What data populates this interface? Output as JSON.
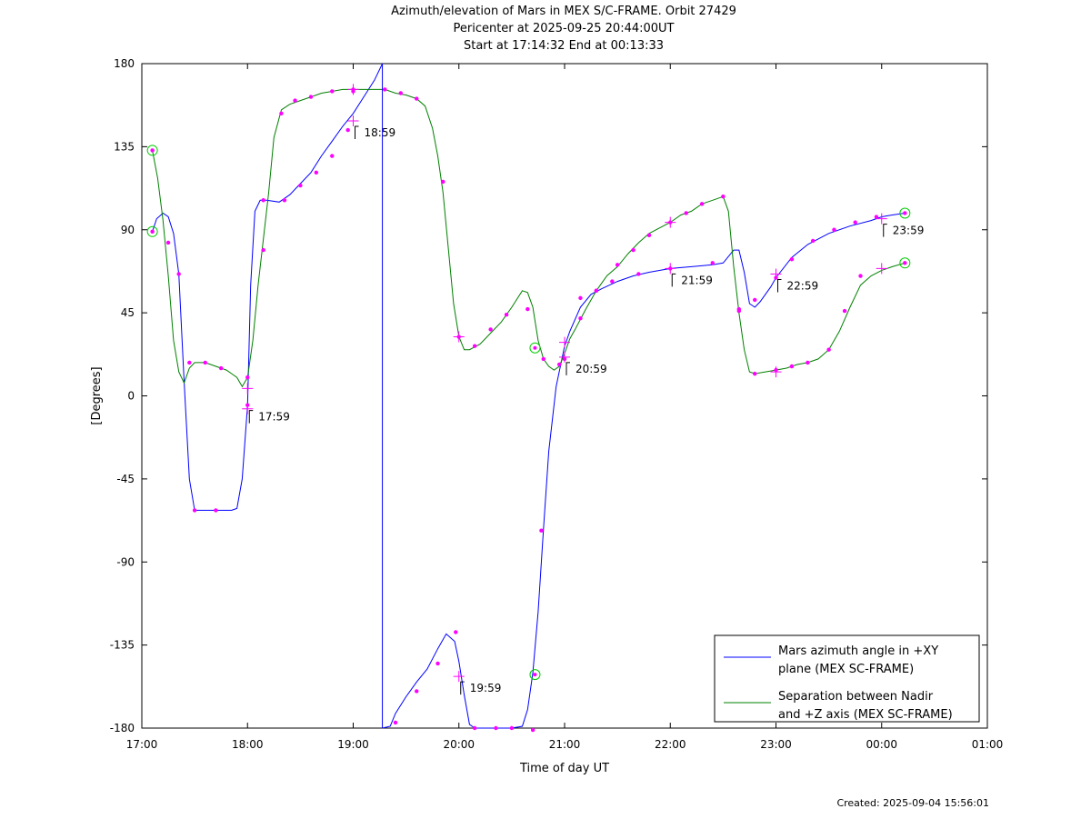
{
  "chart_data": {
    "type": "line",
    "title_lines": [
      "Azimuth/elevation of Mars in MEX S/C-FRAME.  Orbit 27429",
      "Pericenter at 2025-09-25 20:44:00UT",
      "Start at 17:14:32 End at 00:13:33"
    ],
    "xlabel": "Time of day UT",
    "ylabel": "[Degrees]",
    "x_unit": "hours since 17:00 UT",
    "xlim": [
      0,
      8
    ],
    "ylim": [
      -180,
      180
    ],
    "xticks": [
      {
        "x": 0,
        "label": "17:00"
      },
      {
        "x": 1,
        "label": "18:00"
      },
      {
        "x": 2,
        "label": "19:00"
      },
      {
        "x": 3,
        "label": "20:00"
      },
      {
        "x": 4,
        "label": "21:00"
      },
      {
        "x": 5,
        "label": "22:00"
      },
      {
        "x": 6,
        "label": "23:00"
      },
      {
        "x": 7,
        "label": "00:00"
      },
      {
        "x": 8,
        "label": "01:00"
      }
    ],
    "yticks": [
      {
        "y": 180,
        "label": "180"
      },
      {
        "y": 135,
        "label": "135"
      },
      {
        "y": 90,
        "label": "90"
      },
      {
        "y": 45,
        "label": "45"
      },
      {
        "y": 0,
        "label": "0"
      },
      {
        "y": -45,
        "label": "-45"
      },
      {
        "y": -90,
        "label": "-90"
      },
      {
        "y": -135,
        "label": "-135"
      },
      {
        "y": -180,
        "label": "-180"
      }
    ],
    "series": [
      {
        "name_lines": [
          "Mars azimuth angle in +XY",
          "plane (MEX SC-FRAME)"
        ],
        "color": "#0000ff",
        "points": [
          [
            0.1,
            89
          ],
          [
            0.14,
            96
          ],
          [
            0.2,
            99
          ],
          [
            0.25,
            97
          ],
          [
            0.3,
            88
          ],
          [
            0.35,
            66
          ],
          [
            0.4,
            8
          ],
          [
            0.45,
            -45
          ],
          [
            0.5,
            -62
          ],
          [
            0.6,
            -62
          ],
          [
            0.7,
            -62
          ],
          [
            0.8,
            -62
          ],
          [
            0.85,
            -62
          ],
          [
            0.9,
            -61
          ],
          [
            0.95,
            -45
          ],
          [
            1.0,
            -5
          ],
          [
            1.03,
            60
          ],
          [
            1.07,
            100
          ],
          [
            1.12,
            106
          ],
          [
            1.18,
            106
          ],
          [
            1.3,
            105
          ],
          [
            1.4,
            109
          ],
          [
            1.5,
            115
          ],
          [
            1.6,
            121
          ],
          [
            1.7,
            130
          ],
          [
            1.8,
            138
          ],
          [
            1.9,
            146
          ],
          [
            2.0,
            153
          ],
          [
            2.1,
            162
          ],
          [
            2.2,
            171
          ],
          [
            2.276,
            180
          ],
          null,
          [
            2.276,
            -180
          ],
          [
            2.35,
            -179
          ],
          [
            2.4,
            -172
          ],
          [
            2.5,
            -163
          ],
          [
            2.6,
            -155
          ],
          [
            2.7,
            -148
          ],
          [
            2.8,
            -137
          ],
          [
            2.88,
            -129
          ],
          [
            2.96,
            -133
          ],
          [
            3.0,
            -144
          ],
          [
            3.05,
            -162
          ],
          [
            3.1,
            -178
          ],
          [
            3.15,
            -180
          ],
          [
            3.3,
            -180
          ],
          [
            3.4,
            -180
          ],
          [
            3.5,
            -180
          ],
          [
            3.6,
            -179
          ],
          [
            3.65,
            -170
          ],
          [
            3.7,
            -150
          ],
          [
            3.75,
            -117
          ],
          [
            3.8,
            -72
          ],
          [
            3.85,
            -30
          ],
          [
            3.92,
            5
          ],
          [
            4.0,
            27
          ],
          [
            4.05,
            35
          ],
          [
            4.15,
            48
          ],
          [
            4.25,
            55
          ],
          [
            4.35,
            58
          ],
          [
            4.5,
            62
          ],
          [
            4.65,
            65
          ],
          [
            4.8,
            67
          ],
          [
            5.0,
            69
          ],
          [
            5.2,
            70
          ],
          [
            5.4,
            71
          ],
          [
            5.5,
            72
          ],
          [
            5.6,
            79
          ],
          [
            5.65,
            79
          ],
          [
            5.7,
            67
          ],
          [
            5.75,
            50
          ],
          [
            5.8,
            48
          ],
          [
            5.85,
            51
          ],
          [
            5.95,
            59
          ],
          [
            6.0,
            64
          ],
          [
            6.15,
            75
          ],
          [
            6.3,
            82
          ],
          [
            6.5,
            88
          ],
          [
            6.7,
            92
          ],
          [
            6.9,
            95
          ],
          [
            7.0,
            97
          ],
          [
            7.1,
            98
          ],
          [
            7.22,
            99
          ]
        ],
        "dots": [
          [
            0.1,
            89
          ],
          [
            0.25,
            83
          ],
          [
            0.35,
            66
          ],
          [
            0.5,
            -62
          ],
          [
            0.7,
            -62
          ],
          [
            1.0,
            -5
          ],
          [
            1.15,
            106
          ],
          [
            1.35,
            106
          ],
          [
            1.5,
            114
          ],
          [
            1.65,
            121
          ],
          [
            1.8,
            130
          ],
          [
            1.95,
            144
          ],
          [
            2.0,
            165
          ],
          [
            2.4,
            -177
          ],
          [
            2.6,
            -160
          ],
          [
            2.8,
            -145
          ],
          [
            2.97,
            -128
          ],
          [
            3.15,
            -180
          ],
          [
            3.35,
            -180
          ],
          [
            3.5,
            -180
          ],
          [
            3.7,
            -181
          ],
          [
            3.78,
            -73
          ],
          [
            4.0,
            20
          ],
          [
            4.15,
            53
          ],
          [
            4.3,
            57
          ],
          [
            4.45,
            62
          ],
          [
            4.7,
            66
          ],
          [
            5.0,
            69
          ],
          [
            5.4,
            72
          ],
          [
            5.65,
            47
          ],
          [
            5.8,
            52
          ],
          [
            6.0,
            64
          ],
          [
            6.15,
            74
          ],
          [
            6.35,
            84
          ],
          [
            6.55,
            90
          ],
          [
            6.75,
            94
          ],
          [
            6.95,
            97
          ],
          [
            7.22,
            99
          ]
        ],
        "crosses": [
          [
            1.0,
            -7
          ],
          [
            2.0,
            149
          ],
          [
            3.0,
            -152
          ],
          [
            4.0,
            21
          ],
          [
            5.0,
            69
          ],
          [
            6.0,
            66
          ],
          [
            7.0,
            96
          ]
        ],
        "circles": [
          [
            0.1,
            89
          ],
          [
            3.72,
            -151
          ],
          [
            7.22,
            99
          ]
        ]
      },
      {
        "name_lines": [
          "Separation between Nadir",
          "and +Z axis (MEX SC-FRAME)"
        ],
        "color": "#008000",
        "points": [
          [
            0.1,
            133
          ],
          [
            0.15,
            118
          ],
          [
            0.2,
            95
          ],
          [
            0.25,
            65
          ],
          [
            0.3,
            30
          ],
          [
            0.35,
            13
          ],
          [
            0.4,
            7
          ],
          [
            0.45,
            15
          ],
          [
            0.5,
            18
          ],
          [
            0.6,
            18
          ],
          [
            0.7,
            16
          ],
          [
            0.8,
            14
          ],
          [
            0.85,
            12
          ],
          [
            0.9,
            10
          ],
          [
            0.95,
            5
          ],
          [
            1.0,
            10
          ],
          [
            1.05,
            30
          ],
          [
            1.1,
            60
          ],
          [
            1.15,
            85
          ],
          [
            1.2,
            110
          ],
          [
            1.25,
            140
          ],
          [
            1.32,
            155
          ],
          [
            1.4,
            158
          ],
          [
            1.5,
            160
          ],
          [
            1.6,
            162
          ],
          [
            1.7,
            164
          ],
          [
            1.8,
            165
          ],
          [
            1.9,
            166
          ],
          [
            2.0,
            166
          ],
          [
            2.1,
            166
          ],
          [
            2.2,
            166
          ],
          [
            2.3,
            166
          ],
          [
            2.4,
            164
          ],
          [
            2.5,
            163
          ],
          [
            2.6,
            161
          ],
          [
            2.68,
            157
          ],
          [
            2.75,
            145
          ],
          [
            2.8,
            130
          ],
          [
            2.85,
            110
          ],
          [
            2.9,
            80
          ],
          [
            2.95,
            50
          ],
          [
            3.0,
            32
          ],
          [
            3.05,
            25
          ],
          [
            3.1,
            25
          ],
          [
            3.2,
            28
          ],
          [
            3.3,
            34
          ],
          [
            3.4,
            40
          ],
          [
            3.5,
            48
          ],
          [
            3.6,
            57
          ],
          [
            3.65,
            56
          ],
          [
            3.7,
            48
          ],
          [
            3.75,
            30
          ],
          [
            3.8,
            20
          ],
          [
            3.85,
            16
          ],
          [
            3.9,
            14
          ],
          [
            3.95,
            16
          ],
          [
            4.0,
            23
          ],
          [
            4.05,
            31
          ],
          [
            4.1,
            36
          ],
          [
            4.2,
            47
          ],
          [
            4.3,
            57
          ],
          [
            4.4,
            65
          ],
          [
            4.5,
            70
          ],
          [
            4.6,
            77
          ],
          [
            4.7,
            83
          ],
          [
            4.8,
            88
          ],
          [
            4.9,
            91
          ],
          [
            5.0,
            94
          ],
          [
            5.1,
            98
          ],
          [
            5.2,
            100
          ],
          [
            5.3,
            104
          ],
          [
            5.4,
            106
          ],
          [
            5.5,
            108
          ],
          [
            5.55,
            100
          ],
          [
            5.6,
            70
          ],
          [
            5.65,
            45
          ],
          [
            5.7,
            25
          ],
          [
            5.75,
            13
          ],
          [
            5.8,
            12
          ],
          [
            5.9,
            13
          ],
          [
            6.0,
            14
          ],
          [
            6.1,
            15
          ],
          [
            6.2,
            17
          ],
          [
            6.3,
            18
          ],
          [
            6.4,
            20
          ],
          [
            6.5,
            25
          ],
          [
            6.6,
            35
          ],
          [
            6.7,
            48
          ],
          [
            6.8,
            60
          ],
          [
            6.9,
            65
          ],
          [
            7.0,
            68
          ],
          [
            7.1,
            70
          ],
          [
            7.22,
            72
          ]
        ],
        "dots": [
          [
            0.1,
            133
          ],
          [
            0.45,
            18
          ],
          [
            0.6,
            18
          ],
          [
            0.75,
            15
          ],
          [
            1.0,
            10
          ],
          [
            1.15,
            79
          ],
          [
            1.32,
            153
          ],
          [
            1.45,
            160
          ],
          [
            1.6,
            162
          ],
          [
            1.8,
            165
          ],
          [
            2.0,
            166
          ],
          [
            2.3,
            166
          ],
          [
            2.45,
            164
          ],
          [
            2.6,
            161
          ],
          [
            2.85,
            116
          ],
          [
            3.0,
            32
          ],
          [
            3.15,
            27
          ],
          [
            3.3,
            36
          ],
          [
            3.45,
            44
          ],
          [
            3.65,
            47
          ],
          [
            3.8,
            20
          ],
          [
            3.95,
            17
          ],
          [
            4.15,
            42
          ],
          [
            4.3,
            57
          ],
          [
            4.5,
            71
          ],
          [
            4.65,
            79
          ],
          [
            4.8,
            87
          ],
          [
            5.0,
            94
          ],
          [
            5.15,
            99
          ],
          [
            5.3,
            104
          ],
          [
            5.5,
            108
          ],
          [
            5.65,
            46
          ],
          [
            5.8,
            12
          ],
          [
            6.0,
            14
          ],
          [
            6.15,
            16
          ],
          [
            6.3,
            18
          ],
          [
            6.5,
            25
          ],
          [
            6.65,
            46
          ],
          [
            6.8,
            65
          ],
          [
            7.22,
            72
          ]
        ],
        "crosses": [
          [
            1.0,
            4
          ],
          [
            2.0,
            166
          ],
          [
            3.0,
            32
          ],
          [
            4.0,
            29
          ],
          [
            5.0,
            94
          ],
          [
            6.0,
            13
          ],
          [
            7.0,
            69
          ]
        ],
        "circles": [
          [
            0.1,
            133
          ],
          [
            3.72,
            26
          ],
          [
            7.22,
            72
          ]
        ]
      }
    ],
    "annotations": [
      {
        "x": 1.0,
        "y": -5,
        "label": "17:59"
      },
      {
        "x": 2.0,
        "y": 149,
        "label": "18:59"
      },
      {
        "x": 3.0,
        "y": -152,
        "label": "19:59"
      },
      {
        "x": 4.0,
        "y": 21,
        "label": "20:59"
      },
      {
        "x": 5.0,
        "y": 69,
        "label": "21:59"
      },
      {
        "x": 6.0,
        "y": 66,
        "label": "22:59"
      },
      {
        "x": 7.0,
        "y": 96,
        "label": "23:59"
      }
    ],
    "grid": false,
    "legend_position": "bottom-right"
  },
  "footer": {
    "created": "Created: 2025-09-04 15:56:01"
  }
}
